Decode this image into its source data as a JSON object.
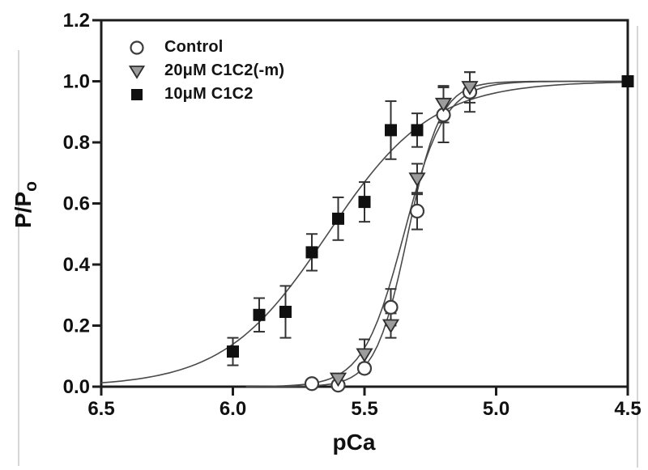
{
  "figure": {
    "background": "#ffffff"
  },
  "chart_data": {
    "type": "scatter",
    "title": "",
    "xlabel": "pCa",
    "ylabel": "P/Po",
    "ylabel_main": "P/P",
    "ylabel_sub": "o",
    "x_axis_reversed": true,
    "x_range": [
      6.5,
      4.5
    ],
    "y_range": [
      0.0,
      1.2
    ],
    "grid": false,
    "legend_position": "upper-left-inside",
    "x_ticks": {
      "values": [
        6.5,
        6.0,
        5.5,
        5.0,
        4.5
      ],
      "labels": [
        "6.5",
        "6.0",
        "5.5",
        "5.0",
        "4.5"
      ]
    },
    "y_ticks": {
      "values": [
        0.0,
        0.2,
        0.4,
        0.6,
        0.8,
        1.0,
        1.2
      ],
      "labels": [
        "0.0",
        "0.2",
        "0.4",
        "0.6",
        "0.8",
        "1.0",
        "1.2"
      ]
    },
    "series": [
      {
        "name": "Control",
        "marker": "open-circle",
        "x": [
          5.7,
          5.6,
          5.5,
          5.4,
          5.3,
          5.2,
          5.1
        ],
        "y": [
          0.01,
          0.005,
          0.06,
          0.26,
          0.575,
          0.89,
          0.965
        ],
        "yerr": [
          0,
          0,
          0.015,
          0.06,
          0.06,
          0.09,
          0.065
        ],
        "fit": {
          "model": "hill",
          "pca50": 5.335,
          "hill_n": 7.0,
          "draw_from": 5.95,
          "draw_to": 4.5
        }
      },
      {
        "name": "20μM C1C2(-m)",
        "marker": "gray-triangle-down",
        "x": [
          5.6,
          5.5,
          5.4,
          5.3,
          5.2,
          5.1
        ],
        "y": [
          0.025,
          0.105,
          0.2,
          0.68,
          0.925,
          0.98
        ],
        "yerr": [
          0,
          0.05,
          0.04,
          0.05,
          0.06,
          0.05
        ],
        "fit": {
          "model": "hill",
          "pca50": 5.35,
          "hill_n": 5.6,
          "draw_from": 5.95,
          "draw_to": 4.5
        }
      },
      {
        "name": "10μM C1C2",
        "marker": "filled-square",
        "x": [
          6.0,
          5.9,
          5.8,
          5.7,
          5.6,
          5.5,
          5.4,
          5.3,
          4.5
        ],
        "y": [
          0.115,
          0.235,
          0.245,
          0.44,
          0.55,
          0.605,
          0.84,
          0.84,
          1.0
        ],
        "yerr": [
          0.045,
          0.055,
          0.085,
          0.06,
          0.07,
          0.065,
          0.095,
          0.055,
          0
        ],
        "fit": {
          "model": "hill",
          "pca50": 5.64,
          "hill_n": 2.2,
          "draw_from": 6.5,
          "draw_to": 4.5
        }
      }
    ],
    "colors": {
      "axis": "#1c1c1c",
      "text": "#111111",
      "curve": "#4a4a4a",
      "error_bar": "#333333",
      "circle_fill": "#ffffff",
      "circle_stroke": "#3c3c3c",
      "triangle_fill": "#9c9c9c",
      "triangle_stroke": "#2e2e2e",
      "square_fill": "#101010",
      "page_edge": "#c9c9c9"
    }
  }
}
